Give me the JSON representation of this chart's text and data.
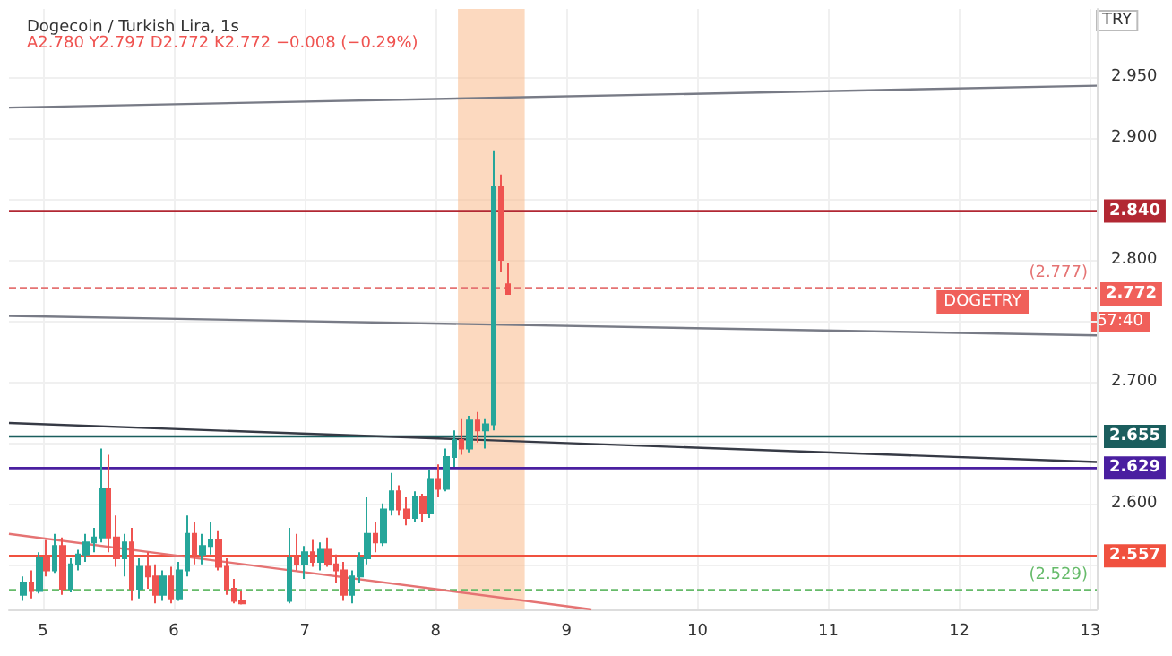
{
  "chart_data": {
    "type": "candlestick",
    "title": "Dogecoin / Turkish Lira, 1s",
    "subtitle": "A2.780 Y2.797 D2.772 K2.772 −0.008 (−0.29%)",
    "ylabel": "TRY",
    "annotations": [
      "DOGETRY",
      {
        "text": "2.772",
        "y": 2.772
      },
      "57:40"
    ],
    "x": [
      4.85,
      4.91,
      4.97,
      5.03,
      5.09,
      5.15,
      5.21,
      5.27,
      5.33,
      5.39,
      5.45,
      5.5,
      5.56,
      5.62,
      5.68,
      5.74,
      5.8,
      5.86,
      5.92,
      5.98,
      6.04,
      6.1,
      6.16,
      6.22,
      6.28,
      6.34,
      6.4,
      6.46,
      6.52,
      6.88,
      6.94,
      7.0,
      7.06,
      7.12,
      7.18,
      7.24,
      7.3,
      7.36,
      7.42,
      7.48,
      7.54,
      7.6,
      7.66,
      7.72,
      7.78,
      7.84,
      7.9,
      7.96,
      8.02,
      8.08,
      8.14,
      8.2,
      8.26,
      8.32,
      8.38,
      8.44,
      8.5,
      8.55
    ],
    "ohlc": [
      [
        2.525,
        2.54,
        2.52,
        2.535
      ],
      [
        2.535,
        2.545,
        2.522,
        2.528
      ],
      [
        2.528,
        2.56,
        2.526,
        2.555
      ],
      [
        2.555,
        2.57,
        2.54,
        2.545
      ],
      [
        2.545,
        2.575,
        2.543,
        2.565
      ],
      [
        2.565,
        2.572,
        2.525,
        2.53
      ],
      [
        2.53,
        2.555,
        2.527,
        2.55
      ],
      [
        2.55,
        2.562,
        2.545,
        2.558
      ],
      [
        2.558,
        2.575,
        2.552,
        2.568
      ],
      [
        2.568,
        2.58,
        2.56,
        2.572
      ],
      [
        2.572,
        2.645,
        2.568,
        2.612
      ],
      [
        2.612,
        2.64,
        2.56,
        2.572
      ],
      [
        2.572,
        2.59,
        2.548,
        2.555
      ],
      [
        2.555,
        2.575,
        2.54,
        2.568
      ],
      [
        2.568,
        2.58,
        2.52,
        2.53
      ],
      [
        2.53,
        2.555,
        2.522,
        2.548
      ],
      [
        2.548,
        2.56,
        2.53,
        2.54
      ],
      [
        2.54,
        2.55,
        2.518,
        2.525
      ],
      [
        2.525,
        2.545,
        2.52,
        2.54
      ],
      [
        2.54,
        2.548,
        2.518,
        2.522
      ],
      [
        2.522,
        2.552,
        2.52,
        2.545
      ],
      [
        2.545,
        2.59,
        2.54,
        2.575
      ],
      [
        2.575,
        2.585,
        2.55,
        2.558
      ],
      [
        2.558,
        2.575,
        2.55,
        2.565
      ],
      [
        2.565,
        2.585,
        2.558,
        2.57
      ],
      [
        2.57,
        2.578,
        2.545,
        2.548
      ],
      [
        2.548,
        2.555,
        2.525,
        2.53
      ],
      [
        2.53,
        2.538,
        2.518,
        2.52
      ],
      [
        2.52,
        2.528,
        2.517,
        2.518
      ],
      [
        2.52,
        2.58,
        2.518,
        2.555
      ],
      [
        2.555,
        2.575,
        2.545,
        2.55
      ],
      [
        2.55,
        2.565,
        2.538,
        2.56
      ],
      [
        2.56,
        2.57,
        2.548,
        2.552
      ],
      [
        2.552,
        2.568,
        2.545,
        2.562
      ],
      [
        2.562,
        2.572,
        2.548,
        2.55
      ],
      [
        2.55,
        2.558,
        2.535,
        2.545
      ],
      [
        2.545,
        2.552,
        2.52,
        2.525
      ],
      [
        2.525,
        2.545,
        2.518,
        2.54
      ],
      [
        2.54,
        2.56,
        2.535,
        2.555
      ],
      [
        2.555,
        2.605,
        2.55,
        2.575
      ],
      [
        2.575,
        2.585,
        2.56,
        2.568
      ],
      [
        2.568,
        2.6,
        2.565,
        2.595
      ],
      [
        2.595,
        2.625,
        2.59,
        2.61
      ],
      [
        2.61,
        2.615,
        2.59,
        2.595
      ],
      [
        2.595,
        2.605,
        2.582,
        2.588
      ],
      [
        2.588,
        2.61,
        2.585,
        2.605
      ],
      [
        2.605,
        2.608,
        2.585,
        2.592
      ],
      [
        2.592,
        2.628,
        2.588,
        2.62
      ],
      [
        2.62,
        2.632,
        2.605,
        2.612
      ],
      [
        2.612,
        2.645,
        2.61,
        2.638
      ],
      [
        2.638,
        2.66,
        2.63,
        2.652
      ],
      [
        2.652,
        2.67,
        2.64,
        2.645
      ],
      [
        2.645,
        2.672,
        2.642,
        2.668
      ],
      [
        2.668,
        2.675,
        2.65,
        2.66
      ],
      [
        2.66,
        2.67,
        2.645,
        2.665
      ],
      [
        2.665,
        2.89,
        2.66,
        2.86
      ],
      [
        2.86,
        2.87,
        2.79,
        2.8
      ],
      [
        2.78,
        2.797,
        2.772,
        2.772
      ]
    ],
    "colors": [
      "#26a69a",
      "#ef5350",
      "#26a69a",
      "#ef5350",
      "#26a69a",
      "#ef5350",
      "#26a69a",
      "#26a69a",
      "#26a69a",
      "#26a69a",
      "#26a69a",
      "#ef5350",
      "#ef5350",
      "#26a69a",
      "#ef5350",
      "#26a69a",
      "#ef5350",
      "#ef5350",
      "#26a69a",
      "#ef5350",
      "#26a69a",
      "#26a69a",
      "#ef5350",
      "#26a69a",
      "#26a69a",
      "#ef5350",
      "#ef5350",
      "#ef5350",
      "#ef5350",
      "#26a69a",
      "#ef5350",
      "#26a69a",
      "#ef5350",
      "#26a69a",
      "#ef5350",
      "#ef5350",
      "#ef5350",
      "#26a69a",
      "#26a69a",
      "#26a69a",
      "#ef5350",
      "#26a69a",
      "#26a69a",
      "#ef5350",
      "#ef5350",
      "#26a69a",
      "#ef5350",
      "#26a69a",
      "#ef5350",
      "#26a69a",
      "#26a69a",
      "#ef5350",
      "#26a69a",
      "#ef5350",
      "#26a69a",
      "#26a69a",
      "#ef5350",
      "#ef5350"
    ],
    "series": [
      {
        "type": "line",
        "x": [
          4.74,
          13.05
        ],
        "values": [
          2.925,
          2.943
        ],
        "color": "#787b86"
      },
      {
        "type": "line",
        "x": [
          4.74,
          13.05
        ],
        "values": [
          2.754,
          2.738
        ],
        "color": "#787b86"
      },
      {
        "type": "line",
        "x": [
          4.74,
          13.05
        ],
        "values": [
          2.666,
          2.634
        ],
        "color": "#363a45"
      },
      {
        "type": "line",
        "x": [
          4.74,
          9.19
        ],
        "values": [
          2.575,
          2.513
        ],
        "color": "#e57373"
      }
    ],
    "ref_lines": [
      {
        "axis": "y",
        "value": 2.84,
        "label": "2.840",
        "color": "#b22833"
      },
      {
        "axis": "y",
        "value": 2.655,
        "label": "2.655",
        "color": "#1b5e5e"
      },
      {
        "axis": "y",
        "value": 2.629,
        "label": "2.629",
        "color": "#4a1fa0"
      },
      {
        "axis": "y",
        "value": 2.557,
        "label": "2.557",
        "color": "#f0513f"
      },
      {
        "axis": "y",
        "value": 2.777,
        "label": "(2.777)",
        "color": "#e57373",
        "line_style": "dashed"
      },
      {
        "axis": "y",
        "value": 2.529,
        "label": "(2.529)",
        "color": "#66bb6a",
        "line_style": "dashed"
      }
    ],
    "bands": [
      {
        "axis": "x",
        "from": 8.17,
        "to": 8.68,
        "color": "#f9b98a"
      }
    ],
    "xlim": [
      4.74,
      13.05
    ],
    "xticks": [
      5,
      6,
      7,
      8,
      9,
      10,
      11,
      12,
      13
    ],
    "ylim": [
      2.513,
      3.006
    ],
    "yticks": [
      {
        "value": 2.55,
        "label": null
      },
      {
        "value": 2.6,
        "label": "2.600"
      },
      {
        "value": 2.65,
        "label": null
      },
      {
        "value": 2.7,
        "label": "2.700"
      },
      {
        "value": 2.75,
        "label": null
      },
      {
        "value": 2.8,
        "label": "2.800"
      },
      {
        "value": 2.85,
        "label": null
      },
      {
        "value": 2.9,
        "label": "2.900"
      },
      {
        "value": 2.95,
        "label": "2.950"
      }
    ],
    "grid": true
  }
}
